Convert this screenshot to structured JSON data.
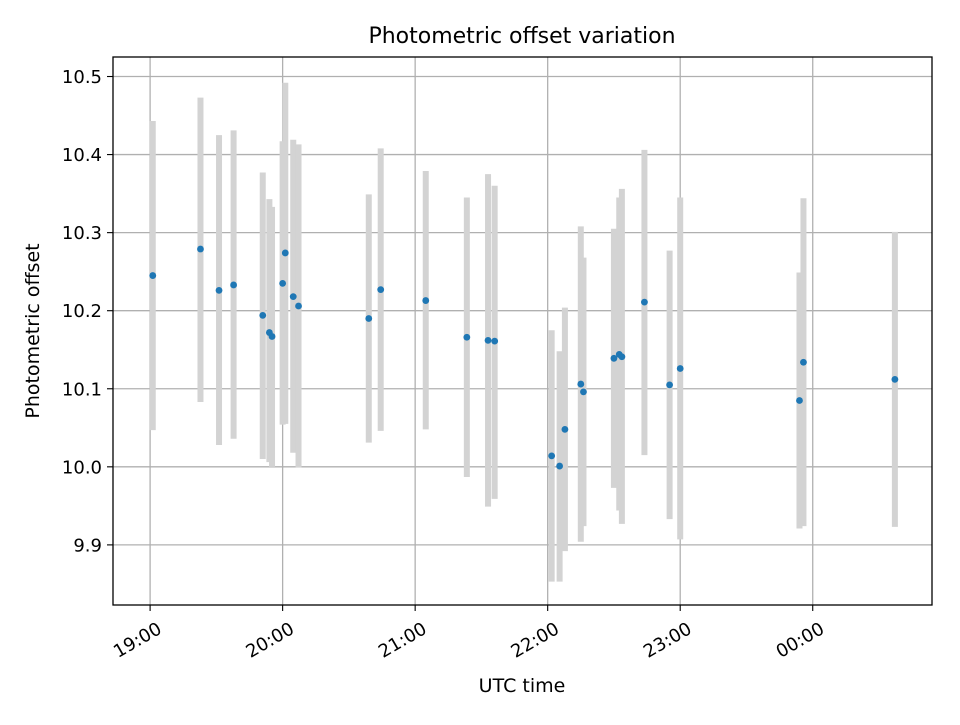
{
  "chart_data": {
    "type": "scatter",
    "title": "Photometric offset variation",
    "xlabel": "UTC time",
    "ylabel": "Photometric offset",
    "x_tick_labels": [
      "19:00",
      "20:00",
      "21:00",
      "22:00",
      "23:00",
      "00:00"
    ],
    "x_tick_hours": [
      19,
      20,
      21,
      22,
      23,
      24
    ],
    "y_ticks": [
      9.9,
      10.0,
      10.1,
      10.2,
      10.3,
      10.4,
      10.5
    ],
    "y_tick_labels": [
      "9.9",
      "10.0",
      "10.1",
      "10.2",
      "10.3",
      "10.4",
      "10.5"
    ],
    "xlim_hours": [
      18.72,
      24.9
    ],
    "ylim": [
      9.823,
      10.525
    ],
    "grid": true,
    "colors": {
      "point": "#1f77b4",
      "errorbar": "#d3d3d3"
    },
    "points": [
      {
        "hour": 19.02,
        "y": 10.245,
        "ylo": 10.047,
        "yhi": 10.443
      },
      {
        "hour": 19.38,
        "y": 10.279,
        "ylo": 10.083,
        "yhi": 10.473
      },
      {
        "hour": 19.52,
        "y": 10.226,
        "ylo": 10.028,
        "yhi": 10.425
      },
      {
        "hour": 19.63,
        "y": 10.233,
        "ylo": 10.036,
        "yhi": 10.431
      },
      {
        "hour": 19.85,
        "y": 10.194,
        "ylo": 10.01,
        "yhi": 10.377
      },
      {
        "hour": 19.9,
        "y": 10.172,
        "ylo": 10.006,
        "yhi": 10.343
      },
      {
        "hour": 19.92,
        "y": 10.167,
        "ylo": 10.0,
        "yhi": 10.333
      },
      {
        "hour": 20.0,
        "y": 10.235,
        "ylo": 10.054,
        "yhi": 10.417
      },
      {
        "hour": 20.02,
        "y": 10.274,
        "ylo": 10.055,
        "yhi": 10.492
      },
      {
        "hour": 20.08,
        "y": 10.218,
        "ylo": 10.018,
        "yhi": 10.419
      },
      {
        "hour": 20.12,
        "y": 10.206,
        "ylo": 9.999,
        "yhi": 10.413
      },
      {
        "hour": 20.65,
        "y": 10.19,
        "ylo": 10.031,
        "yhi": 10.349
      },
      {
        "hour": 20.74,
        "y": 10.227,
        "ylo": 10.046,
        "yhi": 10.408
      },
      {
        "hour": 21.08,
        "y": 10.213,
        "ylo": 10.048,
        "yhi": 10.379
      },
      {
        "hour": 21.39,
        "y": 10.166,
        "ylo": 9.987,
        "yhi": 10.345
      },
      {
        "hour": 21.55,
        "y": 10.162,
        "ylo": 9.949,
        "yhi": 10.375
      },
      {
        "hour": 21.6,
        "y": 10.161,
        "ylo": 9.959,
        "yhi": 10.36
      },
      {
        "hour": 22.03,
        "y": 10.014,
        "ylo": 9.853,
        "yhi": 10.175
      },
      {
        "hour": 22.09,
        "y": 10.001,
        "ylo": 9.853,
        "yhi": 10.148
      },
      {
        "hour": 22.13,
        "y": 10.048,
        "ylo": 9.892,
        "yhi": 10.204
      },
      {
        "hour": 22.25,
        "y": 10.106,
        "ylo": 9.904,
        "yhi": 10.308
      },
      {
        "hour": 22.27,
        "y": 10.096,
        "ylo": 9.924,
        "yhi": 10.268
      },
      {
        "hour": 22.5,
        "y": 10.139,
        "ylo": 9.973,
        "yhi": 10.305
      },
      {
        "hour": 22.54,
        "y": 10.144,
        "ylo": 9.944,
        "yhi": 10.345
      },
      {
        "hour": 22.56,
        "y": 10.141,
        "ylo": 9.927,
        "yhi": 10.356
      },
      {
        "hour": 22.73,
        "y": 10.211,
        "ylo": 10.015,
        "yhi": 10.406
      },
      {
        "hour": 22.92,
        "y": 10.105,
        "ylo": 9.933,
        "yhi": 10.277
      },
      {
        "hour": 23.0,
        "y": 10.126,
        "ylo": 9.907,
        "yhi": 10.345
      },
      {
        "hour": 23.9,
        "y": 10.085,
        "ylo": 9.921,
        "yhi": 10.249
      },
      {
        "hour": 23.93,
        "y": 10.134,
        "ylo": 9.924,
        "yhi": 10.344
      },
      {
        "hour": 24.62,
        "y": 10.112,
        "ylo": 9.923,
        "yhi": 10.301
      }
    ]
  }
}
